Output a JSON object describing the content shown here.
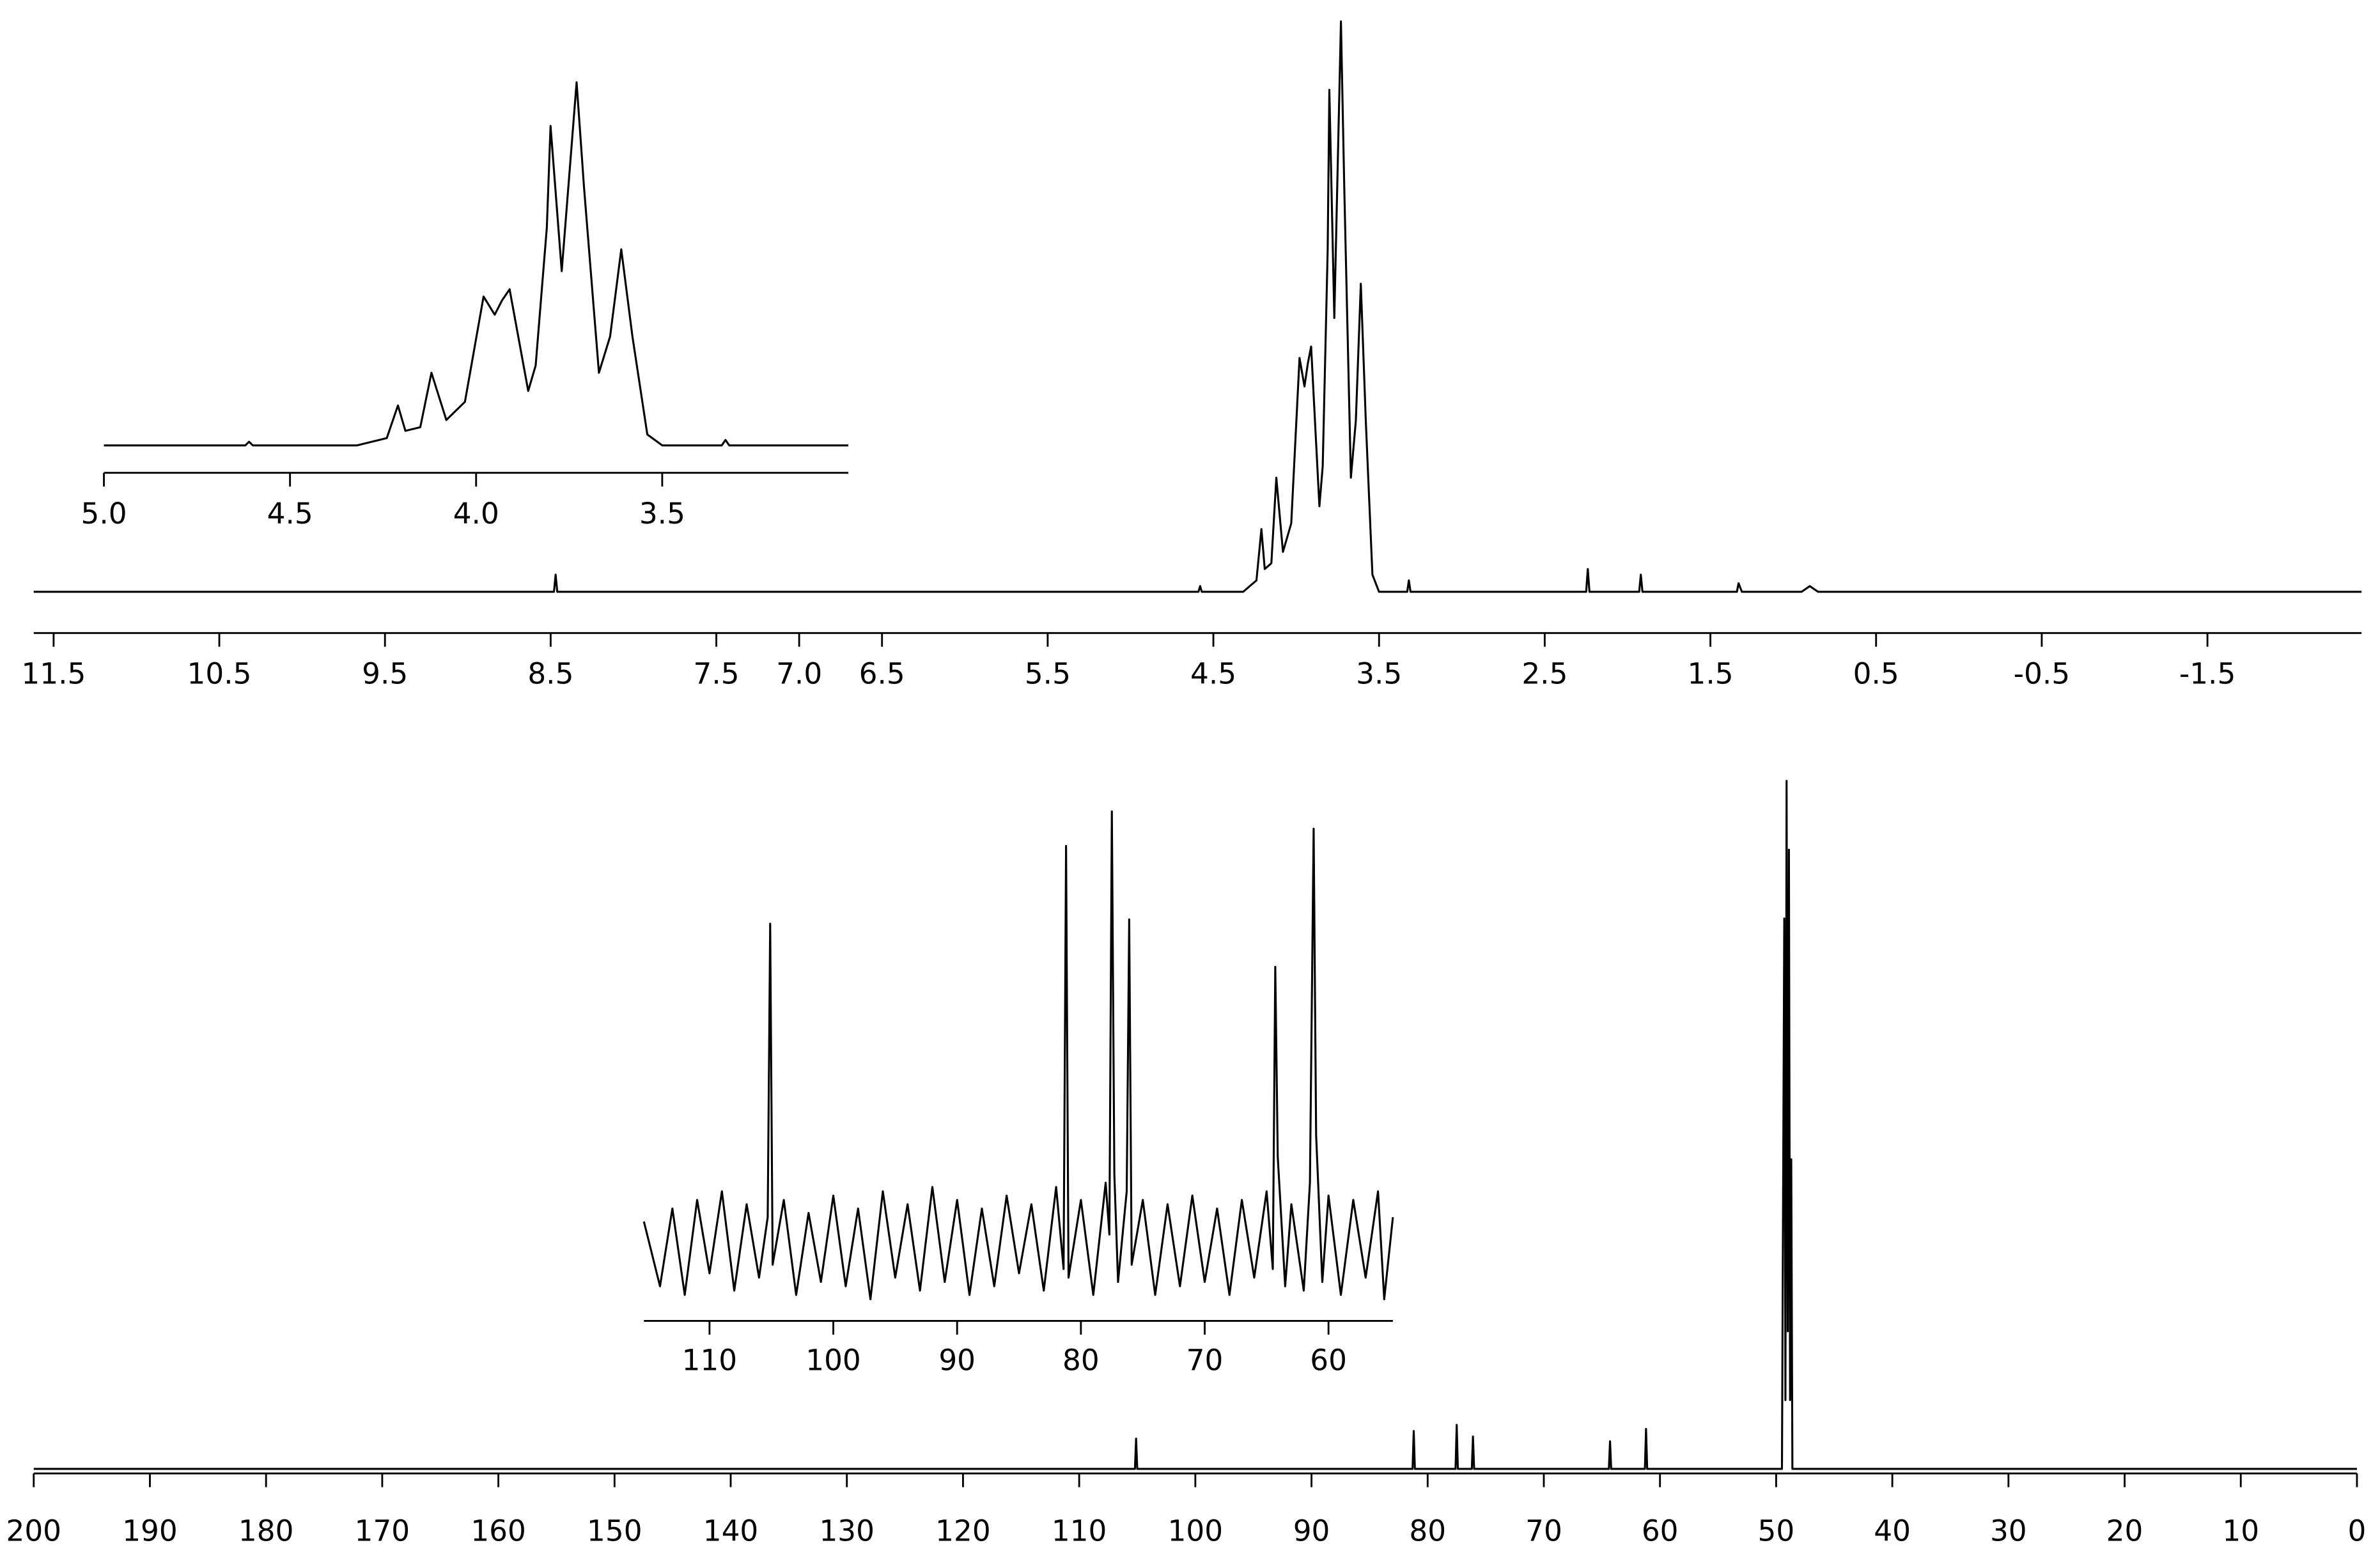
{
  "chart_data": [
    {
      "type": "line",
      "color": "#000000",
      "x": [
        11.62,
        8.48,
        8.47,
        8.46,
        4.59,
        4.58,
        4.57,
        4.32,
        4.24,
        4.21,
        4.19,
        4.15,
        4.12,
        4.08,
        4.03,
        3.98,
        3.95,
        3.93,
        3.91,
        3.86,
        3.84,
        3.81,
        3.8,
        3.77,
        3.73,
        3.71,
        3.67,
        3.64,
        3.61,
        3.58,
        3.54,
        3.5,
        3.33,
        3.32,
        3.31,
        2.25,
        2.24,
        2.23,
        1.93,
        1.92,
        1.91,
        1.34,
        1.33,
        1.31,
        0.95,
        0.9,
        0.85,
        -2.43
      ],
      "values": [
        0,
        0,
        3,
        0,
        0,
        1,
        0,
        0,
        2,
        11,
        4,
        5,
        20,
        7,
        12,
        41,
        36,
        40,
        43,
        15,
        22,
        60,
        88,
        48,
        100,
        71,
        20,
        30,
        54,
        30,
        3,
        0,
        0,
        2,
        0,
        0,
        4,
        0,
        0,
        3,
        0,
        0,
        1.5,
        0,
        0,
        1,
        0,
        0
      ],
      "xlim": [
        11.62,
        -2.43
      ],
      "xticks": [
        11.5,
        10.5,
        9.5,
        8.5,
        7.5,
        {
          "value": 7,
          "label": "7.0"
        },
        6.5,
        5.5,
        4.5,
        3.5,
        2.5,
        1.5,
        0.5,
        -0.5,
        -1.5
      ],
      "ylim": [
        0,
        100
      ]
    },
    {
      "type": "line",
      "color": "#000000",
      "x": [
        5.0,
        4.62,
        4.61,
        4.6,
        4.32,
        4.24,
        4.21,
        4.19,
        4.15,
        4.12,
        4.08,
        4.03,
        3.98,
        3.95,
        3.93,
        3.91,
        3.86,
        3.84,
        3.81,
        3.8,
        3.77,
        3.73,
        3.71,
        3.67,
        3.64,
        3.61,
        3.58,
        3.54,
        3.5,
        3.34,
        3.33,
        3.32,
        3.0
      ],
      "values": [
        0,
        0,
        1,
        0,
        0,
        2,
        11,
        4,
        5,
        20,
        7,
        12,
        41,
        36,
        40,
        43,
        15,
        22,
        60,
        88,
        48,
        100,
        71,
        20,
        30,
        54,
        30,
        3,
        0,
        0,
        1.5,
        0,
        0
      ],
      "xlim": [
        5.0,
        3.0
      ],
      "xticks": [
        {
          "value": 5,
          "label": "5.0"
        },
        4.5,
        {
          "value": 4,
          "label": "4.0"
        },
        3.5
      ],
      "ylim": [
        0,
        100
      ]
    },
    {
      "type": "line",
      "color": "#000000",
      "x": [
        200,
        105.2,
        105.1,
        105.0,
        81.3,
        81.2,
        81.1,
        77.6,
        77.5,
        77.4,
        76.2,
        76.1,
        76.0,
        64.4,
        64.3,
        64.2,
        61.3,
        61.2,
        61.1,
        49.5,
        49.3,
        49.2,
        49.1,
        49.0,
        48.9,
        48.8,
        48.7,
        48.6,
        0
      ],
      "values": [
        0,
        0,
        4.4,
        0,
        0,
        5.5,
        0,
        0,
        6.4,
        0,
        0,
        4.7,
        0,
        0,
        4,
        0,
        0,
        5.8,
        0,
        0,
        80,
        10,
        100,
        20,
        90,
        10,
        45,
        0,
        0
      ],
      "xlim": [
        200,
        0
      ],
      "xticks": [
        200,
        190,
        180,
        170,
        160,
        150,
        140,
        130,
        120,
        110,
        100,
        90,
        80,
        70,
        60,
        50,
        40,
        30,
        20,
        10,
        0
      ],
      "ylim": [
        0,
        100
      ]
    },
    {
      "type": "line",
      "color": "#000000",
      "x": [
        115.3,
        114,
        113,
        112,
        111,
        110,
        109,
        108,
        107,
        106,
        105.3,
        105.1,
        104.9,
        104,
        103,
        102,
        101,
        100,
        99,
        98,
        97,
        96,
        95,
        94,
        93,
        92,
        91,
        90,
        89,
        88,
        87,
        86,
        85,
        84,
        83,
        82,
        81.4,
        81.2,
        81.0,
        80,
        79,
        78,
        77.7,
        77.5,
        77.3,
        77,
        76.3,
        76.1,
        75.9,
        75,
        74,
        73,
        72,
        71,
        70,
        69,
        68,
        67,
        66,
        65,
        64.5,
        64.3,
        64.1,
        63.5,
        63,
        62,
        61.5,
        61.2,
        61.0,
        60.5,
        60,
        59,
        58,
        57,
        56,
        55.5,
        54.8
      ],
      "values": [
        5,
        -10,
        8,
        -12,
        10,
        -7,
        12,
        -11,
        9,
        -8,
        6,
        74,
        -5,
        10,
        -12,
        7,
        -9,
        11,
        -10,
        8,
        -13,
        12,
        -8,
        9,
        -11,
        13,
        -9,
        10,
        -12,
        8,
        -10,
        11,
        -7,
        9,
        -11,
        13,
        -6,
        92,
        -8,
        10,
        -12,
        14,
        2,
        100,
        16,
        -9,
        12,
        75,
        -5,
        10,
        -12,
        9,
        -10,
        11,
        -9,
        8,
        -12,
        10,
        -8,
        12,
        -6,
        64,
        20,
        -10,
        9,
        -11,
        14,
        96,
        25,
        -9,
        11,
        -12,
        10,
        -8,
        12,
        -13,
        6
      ],
      "xlim": [
        115.3,
        54.8
      ],
      "xticks": [
        110,
        100,
        90,
        80,
        70,
        60
      ],
      "ylim": [
        -20,
        100
      ]
    }
  ]
}
